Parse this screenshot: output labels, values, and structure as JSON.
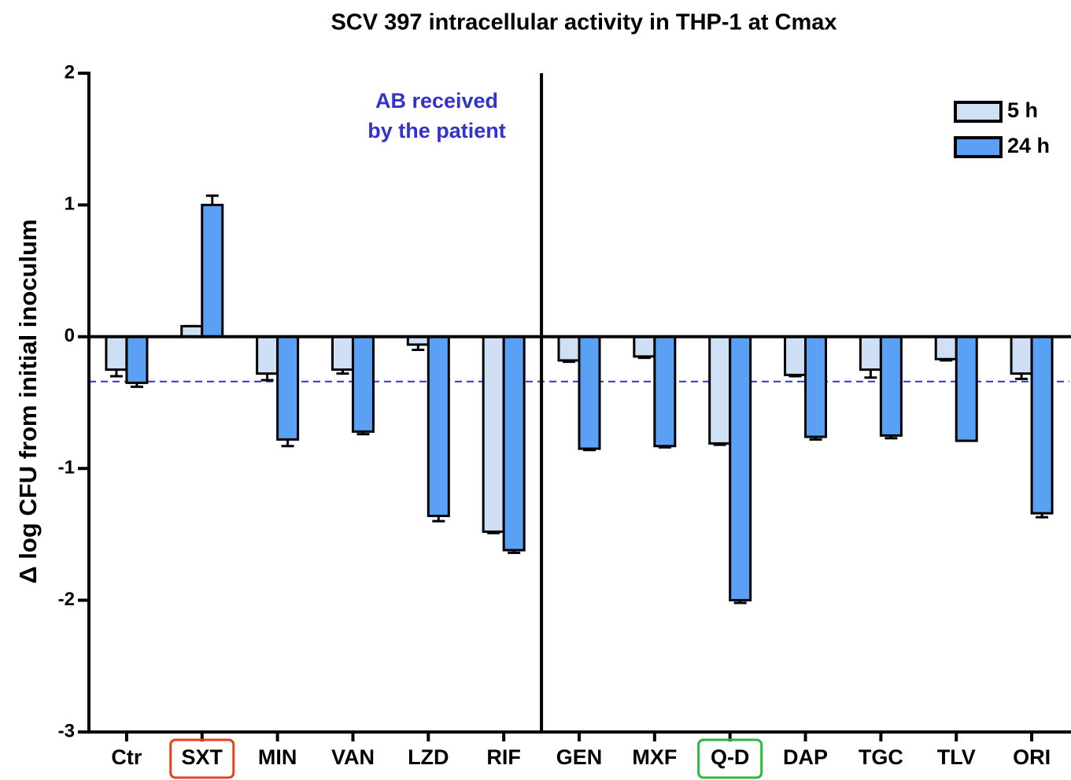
{
  "chart_data": {
    "type": "bar",
    "title": "SCV 397 intracellular activity in THP-1 at Cmax",
    "y_label": "Δ log CFU from initial inoculum",
    "categories": [
      "Ctr",
      "SXT",
      "MIN",
      "VAN",
      "LZD",
      "RIF",
      "GEN",
      "MXF",
      "Q-D",
      "DAP",
      "TGC",
      "TLV",
      "ORI"
    ],
    "series": [
      {
        "name": "5 h",
        "color": "#cfe0f5",
        "values": [
          -0.25,
          0.08,
          -0.28,
          -0.25,
          -0.06,
          -1.48,
          -0.18,
          -0.15,
          -0.81,
          -0.29,
          -0.25,
          -0.17,
          -0.28
        ],
        "errors": [
          0.05,
          0,
          0.05,
          0.03,
          0.04,
          0.01,
          0.01,
          0.01,
          0.01,
          0.01,
          0.06,
          0.01,
          0.04
        ]
      },
      {
        "name": "24 h",
        "color": "#5aa0f5",
        "values": [
          -0.35,
          1.0,
          -0.78,
          -0.72,
          -1.36,
          -1.62,
          -0.85,
          -0.83,
          -2.0,
          -0.76,
          -0.75,
          -0.79,
          -1.34
        ],
        "errors": [
          0.03,
          0.07,
          0.05,
          0.02,
          0.04,
          0.02,
          0.01,
          0.01,
          0.02,
          0.02,
          0.02,
          0,
          0.03
        ]
      }
    ],
    "ylim": [
      -3,
      2
    ],
    "yticks": [
      -3,
      -2,
      -1,
      0,
      1,
      2
    ],
    "reference_line": -0.34,
    "reference_color": "#3333cc",
    "annotation": [
      "AB received",
      "by the patient"
    ],
    "annotation_color": "#3333cc",
    "divider_after": [
      false,
      false,
      false,
      false,
      false,
      true,
      false,
      false,
      false,
      false,
      false,
      false,
      false
    ],
    "category_box_colors": [
      null,
      "#e8401c",
      null,
      null,
      null,
      null,
      null,
      null,
      "#2db83d",
      null,
      null,
      null,
      null
    ],
    "legend": "top-right"
  }
}
